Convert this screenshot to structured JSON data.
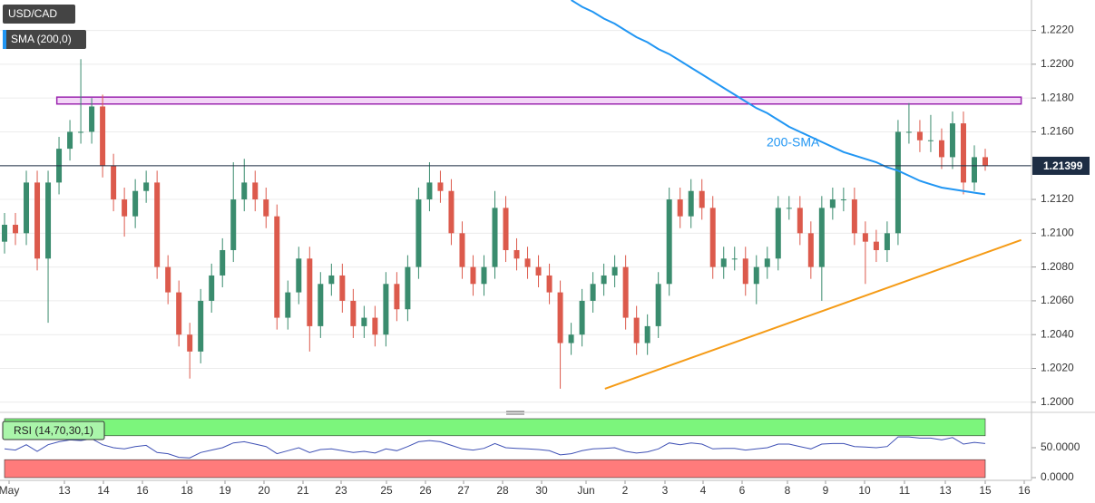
{
  "chart_data": {
    "type": "candlestick",
    "title": "USD/CAD",
    "x_labels": [
      "May",
      "13",
      "14",
      "16",
      "18",
      "19",
      "20",
      "21",
      "23",
      "25",
      "26",
      "27",
      "28",
      "30",
      "Jun",
      "2",
      "3",
      "4",
      "6",
      "8",
      "9",
      "10",
      "11",
      "13",
      "15",
      "16"
    ],
    "candles": [
      [
        1.2095,
        1.2112,
        1.2088,
        1.2105
      ],
      [
        1.2105,
        1.2112,
        1.2093,
        1.21
      ],
      [
        1.21,
        1.2137,
        1.2093,
        1.213
      ],
      [
        1.213,
        1.2137,
        1.2078,
        1.2085
      ],
      [
        1.2085,
        1.2137,
        1.2047,
        1.213
      ],
      [
        1.213,
        1.2157,
        1.2123,
        1.215
      ],
      [
        1.215,
        1.2167,
        1.2143,
        1.216
      ],
      [
        1.216,
        1.2203,
        1.2153,
        1.216
      ],
      [
        1.216,
        1.218,
        1.2153,
        1.2175
      ],
      [
        1.2175,
        1.2182,
        1.2133,
        1.214
      ],
      [
        1.214,
        1.2147,
        1.2113,
        1.212
      ],
      [
        1.212,
        1.2127,
        1.2098,
        1.211
      ],
      [
        1.211,
        1.2132,
        1.2103,
        1.2125
      ],
      [
        1.2125,
        1.2137,
        1.2118,
        1.213
      ],
      [
        1.213,
        1.2137,
        1.2073,
        1.208
      ],
      [
        1.208,
        1.2087,
        1.2058,
        1.2065
      ],
      [
        1.2065,
        1.2072,
        1.2033,
        1.204
      ],
      [
        1.204,
        1.2047,
        1.2014,
        1.203
      ],
      [
        1.203,
        1.2067,
        1.2023,
        1.206
      ],
      [
        1.206,
        1.2082,
        1.2053,
        1.2075
      ],
      [
        1.2075,
        1.2097,
        1.2068,
        1.209
      ],
      [
        1.209,
        1.2142,
        1.2083,
        1.212
      ],
      [
        1.212,
        1.2144,
        1.2113,
        1.213
      ],
      [
        1.213,
        1.2137,
        1.2113,
        1.212
      ],
      [
        1.212,
        1.2127,
        1.2103,
        1.211
      ],
      [
        1.211,
        1.2117,
        1.2043,
        1.205
      ],
      [
        1.205,
        1.2072,
        1.2043,
        1.2065
      ],
      [
        1.2065,
        1.2092,
        1.2058,
        1.2085
      ],
      [
        1.2085,
        1.2092,
        1.203,
        1.2045
      ],
      [
        1.2045,
        1.2077,
        1.2038,
        1.207
      ],
      [
        1.207,
        1.2082,
        1.2063,
        1.2075
      ],
      [
        1.2075,
        1.2082,
        1.2053,
        1.206
      ],
      [
        1.206,
        1.2067,
        1.2038,
        1.2045
      ],
      [
        1.2045,
        1.2057,
        1.2038,
        1.205
      ],
      [
        1.205,
        1.2057,
        1.2033,
        1.204
      ],
      [
        1.204,
        1.2077,
        1.2033,
        1.207
      ],
      [
        1.207,
        1.2077,
        1.2048,
        1.2055
      ],
      [
        1.2055,
        1.2087,
        1.2048,
        1.208
      ],
      [
        1.208,
        1.2127,
        1.2073,
        1.212
      ],
      [
        1.212,
        1.2142,
        1.2113,
        1.213
      ],
      [
        1.213,
        1.2137,
        1.2118,
        1.2125
      ],
      [
        1.2125,
        1.2132,
        1.2093,
        1.21
      ],
      [
        1.21,
        1.2107,
        1.2073,
        1.208
      ],
      [
        1.208,
        1.2087,
        1.2063,
        1.207
      ],
      [
        1.207,
        1.2087,
        1.2063,
        1.208
      ],
      [
        1.208,
        1.2125,
        1.2073,
        1.2115
      ],
      [
        1.2115,
        1.2122,
        1.2083,
        1.209
      ],
      [
        1.209,
        1.2097,
        1.2078,
        1.2085
      ],
      [
        1.2085,
        1.2092,
        1.2073,
        1.208
      ],
      [
        1.208,
        1.2087,
        1.2068,
        1.2075
      ],
      [
        1.2075,
        1.2082,
        1.2058,
        1.2065
      ],
      [
        1.2065,
        1.2072,
        1.2008,
        1.2035
      ],
      [
        1.2035,
        1.2047,
        1.2028,
        1.204
      ],
      [
        1.204,
        1.2067,
        1.2033,
        1.206
      ],
      [
        1.206,
        1.2077,
        1.2053,
        1.207
      ],
      [
        1.207,
        1.2082,
        1.2063,
        1.2075
      ],
      [
        1.2075,
        1.2087,
        1.2068,
        1.208
      ],
      [
        1.208,
        1.2087,
        1.2043,
        1.205
      ],
      [
        1.205,
        1.2057,
        1.2028,
        1.2035
      ],
      [
        1.2035,
        1.2052,
        1.2028,
        1.2045
      ],
      [
        1.2045,
        1.2077,
        1.2038,
        1.207
      ],
      [
        1.207,
        1.2127,
        1.2063,
        1.212
      ],
      [
        1.212,
        1.2127,
        1.2103,
        1.211
      ],
      [
        1.211,
        1.2132,
        1.2103,
        1.2125
      ],
      [
        1.2125,
        1.2132,
        1.2108,
        1.2115
      ],
      [
        1.2115,
        1.2122,
        1.2073,
        1.208
      ],
      [
        1.208,
        1.2092,
        1.2073,
        1.2085
      ],
      [
        1.2085,
        1.2092,
        1.2078,
        1.2085
      ],
      [
        1.2085,
        1.2092,
        1.2063,
        1.207
      ],
      [
        1.207,
        1.2087,
        1.2058,
        1.208
      ],
      [
        1.208,
        1.2092,
        1.2073,
        1.2085
      ],
      [
        1.2085,
        1.2122,
        1.2078,
        1.2115
      ],
      [
        1.2115,
        1.2122,
        1.2108,
        1.2115
      ],
      [
        1.2115,
        1.2122,
        1.2093,
        1.21
      ],
      [
        1.21,
        1.2107,
        1.2073,
        1.208
      ],
      [
        1.208,
        1.2122,
        1.206,
        1.2115
      ],
      [
        1.2115,
        1.2127,
        1.2108,
        1.212
      ],
      [
        1.212,
        1.2127,
        1.2113,
        1.212
      ],
      [
        1.212,
        1.2127,
        1.2093,
        1.21
      ],
      [
        1.21,
        1.2107,
        1.207,
        1.2095
      ],
      [
        1.2095,
        1.2102,
        1.2083,
        1.209
      ],
      [
        1.209,
        1.2107,
        1.2083,
        1.21
      ],
      [
        1.21,
        1.2167,
        1.2093,
        1.216
      ],
      [
        1.216,
        1.2177,
        1.2153,
        1.216
      ],
      [
        1.216,
        1.2167,
        1.2148,
        1.2155
      ],
      [
        1.2155,
        1.217,
        1.2148,
        1.2155
      ],
      [
        1.2155,
        1.2162,
        1.2138,
        1.2145
      ],
      [
        1.2145,
        1.2172,
        1.2138,
        1.2165
      ],
      [
        1.2165,
        1.2172,
        1.2123,
        1.213
      ],
      [
        1.213,
        1.2152,
        1.2125,
        1.2145
      ],
      [
        1.2145,
        1.215,
        1.2137,
        1.214
      ]
    ],
    "up_color": "#3a8c6e",
    "down_color": "#dc5a4c",
    "ylim": [
      1.1994,
      1.2238
    ],
    "yticks": [
      {
        "value": 1.2,
        "label": "1.2000"
      },
      {
        "value": 1.202,
        "label": "1.2020"
      },
      {
        "value": 1.204,
        "label": "1.2040"
      },
      {
        "value": 1.206,
        "label": "1.2060"
      },
      {
        "value": 1.208,
        "label": "1.2080"
      },
      {
        "value": 1.21,
        "label": "1.2100"
      },
      {
        "value": 1.212,
        "label": "1.2120"
      },
      {
        "value": 1.214,
        "label": "1.2140"
      },
      {
        "value": 1.216,
        "label": "1.2160"
      },
      {
        "value": 1.218,
        "label": "1.2180"
      },
      {
        "value": 1.22,
        "label": "1.2200"
      },
      {
        "value": 1.222,
        "label": "1.2220"
      }
    ],
    "grid": true,
    "last_price": 1.21399,
    "sma": {
      "name": "SMA (200,0)",
      "color": "#2196f3",
      "values": [
        null,
        null,
        null,
        null,
        null,
        null,
        null,
        null,
        null,
        null,
        null,
        null,
        null,
        null,
        null,
        null,
        null,
        null,
        null,
        null,
        null,
        null,
        null,
        null,
        null,
        null,
        null,
        null,
        null,
        null,
        null,
        null,
        null,
        null,
        null,
        null,
        null,
        null,
        null,
        null,
        null,
        null,
        null,
        null,
        null,
        null,
        null,
        null,
        null,
        null,
        null,
        null,
        1.2238,
        1.2234,
        1.2231,
        1.2227,
        1.2224,
        1.222,
        1.2216,
        1.2213,
        1.2209,
        1.2206,
        1.2202,
        1.2198,
        1.2194,
        1.219,
        1.2186,
        1.2182,
        1.2178,
        1.2174,
        1.2171,
        1.2167,
        1.2163,
        1.216,
        1.2157,
        1.2154,
        1.2151,
        1.2148,
        1.2146,
        1.2144,
        1.2142,
        1.2139,
        1.2137,
        1.2134,
        1.2131,
        1.2129,
        1.2127,
        1.2126,
        1.2125,
        1.2124,
        1.2123
      ]
    },
    "annotation": "200-SMA",
    "resistance": {
      "x": [
        4.8,
        93.3
      ],
      "y": [
        1.2177,
        1.218
      ],
      "color": "#9c27b0"
    },
    "support": {
      "x": [
        55.1,
        93.3
      ],
      "y": [
        1.2008,
        1.2096
      ],
      "color": "#f59b16"
    },
    "rsi": {
      "name": "RSI (14,70,30,1)",
      "color": "#3f51b5",
      "values": [
        48,
        46,
        55,
        44,
        55,
        60,
        63,
        62,
        65,
        55,
        50,
        48,
        52,
        54,
        42,
        40,
        34,
        33,
        42,
        46,
        50,
        58,
        60,
        56,
        52,
        40,
        45,
        50,
        42,
        47,
        48,
        45,
        42,
        44,
        41,
        48,
        45,
        52,
        60,
        62,
        60,
        54,
        48,
        46,
        49,
        57,
        50,
        49,
        48,
        47,
        45,
        38,
        40,
        45,
        48,
        49,
        50,
        44,
        41,
        43,
        48,
        58,
        55,
        58,
        56,
        48,
        49,
        49,
        46,
        48,
        50,
        56,
        56,
        52,
        48,
        56,
        57,
        57,
        52,
        51,
        50,
        52,
        68,
        68,
        66,
        66,
        63,
        67,
        56,
        59,
        57
      ],
      "ylim": [
        0,
        100
      ],
      "yticks": [
        {
          "value": 0,
          "label": "0.0000"
        },
        {
          "value": 50,
          "label": "50.0000"
        }
      ],
      "levels": [
        30,
        70
      ],
      "upper_color": "#7cf57c",
      "lower_color": "#ff7b7b"
    }
  }
}
